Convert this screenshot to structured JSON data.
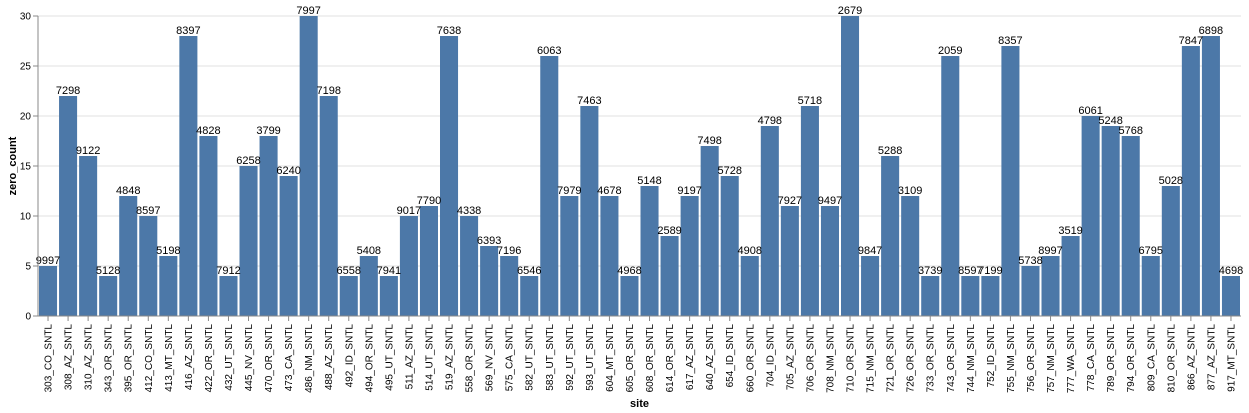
{
  "chart_data": {
    "type": "bar",
    "xlabel": "site",
    "ylabel": "zero_count",
    "ylim": [
      0,
      30
    ],
    "yticks": [
      0,
      5,
      10,
      15,
      20,
      25,
      30
    ],
    "grid": true,
    "bar_color": "#4c78a8",
    "categories": [
      "303_CO_SNTL",
      "308_AZ_SNTL",
      "310_AZ_SNTL",
      "343_OR_SNTL",
      "395_OR_SNTL",
      "412_CO_SNTL",
      "413_MT_SNTL",
      "416_AZ_SNTL",
      "422_OR_SNTL",
      "432_UT_SNTL",
      "445_NV_SNTL",
      "470_OR_SNTL",
      "473_CA_SNTL",
      "486_NM_SNTL",
      "488_AZ_SNTL",
      "492_ID_SNTL",
      "494_OR_SNTL",
      "495_UT_SNTL",
      "511_AZ_SNTL",
      "514_UT_SNTL",
      "519_AZ_SNTL",
      "558_OR_SNTL",
      "569_NV_SNTL",
      "575_CA_SNTL",
      "582_UT_SNTL",
      "583_UT_SNTL",
      "592_UT_SNTL",
      "593_UT_SNTL",
      "604_MT_SNTL",
      "605_OR_SNTL",
      "608_OR_SNTL",
      "614_OR_SNTL",
      "617_AZ_SNTL",
      "640_AZ_SNTL",
      "654_ID_SNTL",
      "660_OR_SNTL",
      "704_ID_SNTL",
      "705_AZ_SNTL",
      "706_OR_SNTL",
      "708_NM_SNTL",
      "710_OR_SNTL",
      "715_NM_SNTL",
      "721_OR_SNTL",
      "726_OR_SNTL",
      "733_OR_SNTL",
      "743_OR_SNTL",
      "744_NM_SNTL",
      "752_ID_SNTL",
      "755_NM_SNTL",
      "756_OR_SNTL",
      "757_NM_SNTL",
      "777_WA_SNTL",
      "778_CA_SNTL",
      "789_OR_SNTL",
      "794_OR_SNTL",
      "809_CA_SNTL",
      "810_OR_SNTL",
      "866_AZ_SNTL",
      "877_AZ_SNTL",
      "917_MT_SNTL"
    ],
    "values": [
      5,
      22,
      16,
      4,
      12,
      10,
      6,
      28,
      18,
      4,
      15,
      18,
      14,
      30,
      22,
      4,
      6,
      4,
      10,
      11,
      28,
      10,
      7,
      6,
      4,
      26,
      12,
      21,
      12,
      4,
      13,
      8,
      12,
      17,
      14,
      6,
      19,
      11,
      21,
      11,
      30,
      6,
      16,
      12,
      4,
      26,
      4,
      4,
      27,
      5,
      6,
      8,
      20,
      19,
      18,
      6,
      13,
      27,
      28,
      4
    ],
    "data_labels": [
      "9997",
      "7298",
      "9122",
      "5128",
      "4848",
      "8597",
      "5198",
      "8397",
      "4828",
      "7912",
      "6258",
      "3799",
      "6240",
      "7997",
      "7198",
      "6558",
      "5408",
      "7941",
      "9017",
      "7790",
      "7638",
      "4338",
      "6393",
      "7196",
      "6546",
      "6063",
      "7979",
      "7463",
      "4678",
      "4968",
      "5148",
      "2589",
      "9197",
      "7498",
      "5728",
      "4908",
      "4798",
      "7927",
      "5718",
      "9497",
      "2679",
      "9847",
      "5288",
      "3109",
      "3739",
      "2059",
      "8597",
      "7199",
      "8357",
      "5738",
      "8997",
      "3519",
      "6061",
      "5248",
      "5768",
      "6795",
      "5028",
      "7847",
      "6898",
      "4698"
    ]
  }
}
